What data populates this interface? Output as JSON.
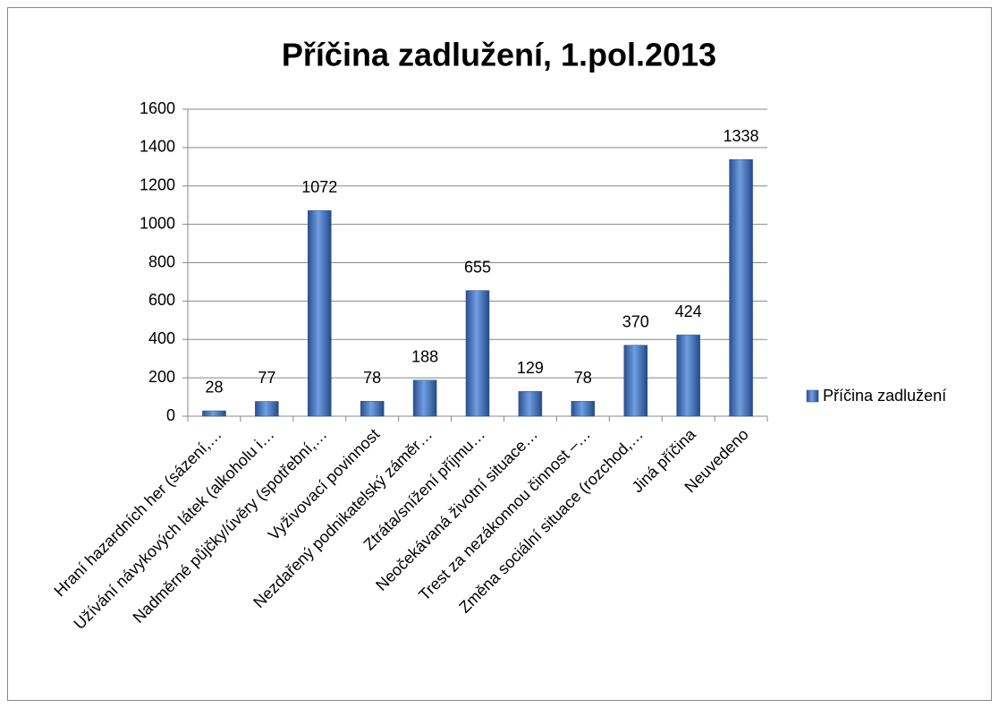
{
  "chart_data": {
    "type": "bar",
    "title": "Příčina zadlužení, 1.pol.2013",
    "categories": [
      "Hraní hazardních her (sázení,…",
      "Užívání návykových látek (alkoholu i…",
      "Nadměrné půjčky/úvěry (spotřební,…",
      "Vyživovací povinnost",
      "Nezdařený podnikatelský záměr…",
      "Ztráta/snížení příjmu…",
      "Neočekávaná životní situace…",
      "Trest za nezákonnou činnost –…",
      "Změna sociální situace (rozchod,…",
      "Jiná příčina",
      "Neuvedeno"
    ],
    "series": [
      {
        "name": "Příčina zadlužení",
        "color": "#3a6cc0",
        "values": [
          28,
          77,
          1072,
          78,
          188,
          655,
          129,
          78,
          370,
          424,
          1338
        ]
      }
    ],
    "ylim": [
      0,
      1600
    ],
    "yticks": [
      0,
      200,
      400,
      600,
      800,
      1000,
      1200,
      1400,
      1600
    ],
    "grid": true,
    "legend": "right",
    "data_labels": true
  }
}
